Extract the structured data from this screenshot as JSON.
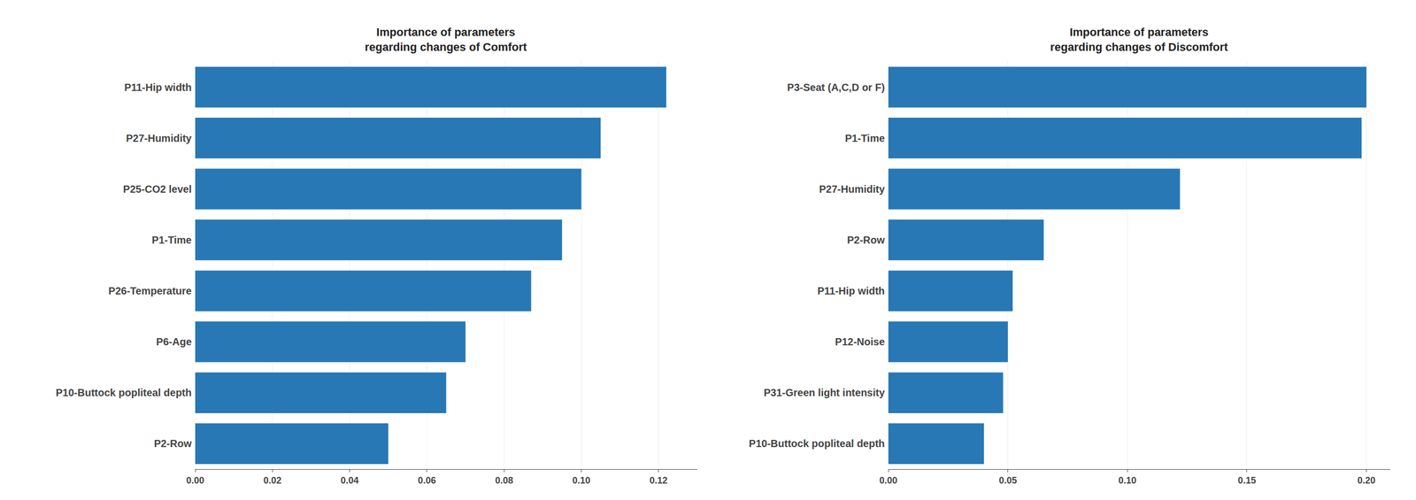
{
  "chart_data": [
    {
      "type": "bar",
      "orientation": "horizontal",
      "title": "Importance of parameters\nregarding changes of Comfort",
      "categories": [
        "P11-Hip width",
        "P27-Humidity",
        "P25-CO2 level",
        "P1-Time",
        "P26-Temperature",
        "P6-Age",
        "P10-Buttock popliteal depth",
        "P2-Row"
      ],
      "values": [
        0.122,
        0.105,
        0.1,
        0.095,
        0.087,
        0.07,
        0.065,
        0.05
      ],
      "color": "#2878b5",
      "xlim": [
        0,
        0.13
      ],
      "xticks": [
        {
          "value": 0,
          "label": "0.00"
        },
        0.02,
        0.04,
        0.06,
        0.08,
        {
          "value": 0.1,
          "label": "0.10"
        },
        0.12
      ],
      "grid": true
    },
    {
      "type": "bar",
      "orientation": "horizontal",
      "title": "Importance of parameters\nregarding changes of Discomfort",
      "categories": [
        "P3-Seat (A,C,D or F)",
        "P1-Time",
        "P27-Humidity",
        "P2-Row",
        "P11-Hip width",
        "P12-Noise",
        "P31-Green light intensity",
        "P10-Buttock popliteal depth"
      ],
      "values": [
        0.2,
        0.198,
        0.122,
        0.065,
        0.052,
        0.05,
        0.048,
        0.04
      ],
      "color": "#2878b5",
      "xlim": [
        0,
        0.21
      ],
      "xticks": [
        {
          "value": 0,
          "label": "0.00"
        },
        0.05,
        {
          "value": 0.1,
          "label": "0.10"
        },
        0.15,
        {
          "value": 0.2,
          "label": "0.20"
        }
      ],
      "grid": true
    }
  ]
}
